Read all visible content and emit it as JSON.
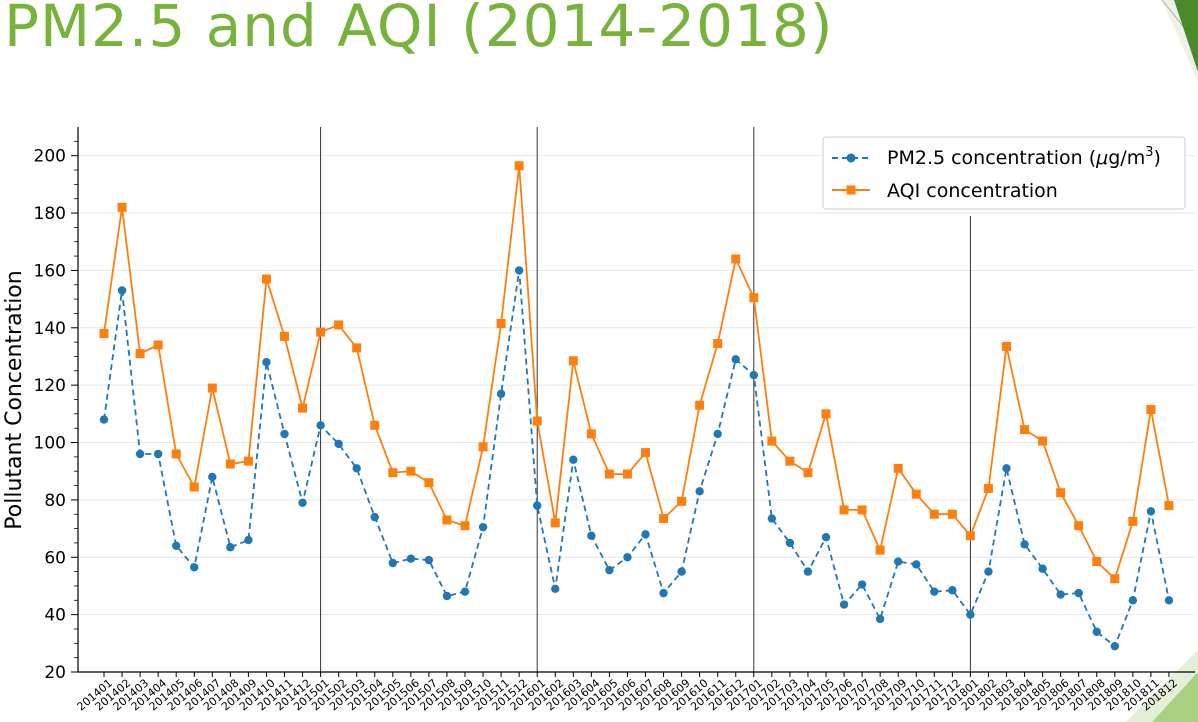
{
  "slide": {
    "title": "PM2.5 and AQI (2014-2018)",
    "title_color": "#77b33a"
  },
  "chart_data": {
    "type": "line",
    "title": "",
    "xlabel": "",
    "ylabel": "Pollutant Concentration",
    "ylim": [
      20,
      210
    ],
    "yticks": [
      20,
      40,
      60,
      80,
      100,
      120,
      140,
      160,
      180,
      200
    ],
    "grid": "horizontal",
    "legend_position": "top-right",
    "year_separators_after": [
      "201412",
      "201512",
      "201612",
      "201712"
    ],
    "x": [
      "201401",
      "201402",
      "201403",
      "201404",
      "201405",
      "201406",
      "201407",
      "201408",
      "201409",
      "201410",
      "201411",
      "201412",
      "201501",
      "201502",
      "201503",
      "201504",
      "201505",
      "201506",
      "201507",
      "201508",
      "201509",
      "201510",
      "201511",
      "201512",
      "201601",
      "201602",
      "201603",
      "201604",
      "201605",
      "201606",
      "201607",
      "201608",
      "201609",
      "201610",
      "201611",
      "201612",
      "201701",
      "201702",
      "201703",
      "201704",
      "201705",
      "201706",
      "201707",
      "201708",
      "201709",
      "201710",
      "201711",
      "201712",
      "201801",
      "201802",
      "201803",
      "201804",
      "201805",
      "201806",
      "201807",
      "201808",
      "201809",
      "201810",
      "201811",
      "201812"
    ],
    "series": [
      {
        "name_main": "PM2.5 concentration (",
        "name_mu": "μ",
        "name_unit": "g/m",
        "name_sup": "3",
        "name_end": ")",
        "color": "#1f77b4",
        "line_style": "dashed",
        "marker": "circle",
        "values": [
          108,
          153,
          96,
          96,
          64,
          56.5,
          88,
          63.5,
          66,
          128,
          103,
          79,
          106,
          99.5,
          91,
          74,
          58,
          59.5,
          59,
          46.5,
          48,
          70.5,
          117,
          160,
          78,
          49,
          94,
          67.5,
          55.5,
          60,
          68,
          47.5,
          55,
          83,
          103,
          129,
          123.5,
          73.5,
          65,
          55,
          67,
          43.5,
          50.5,
          38.5,
          58.5,
          57.5,
          48,
          48.5,
          40,
          55,
          91,
          64.5,
          56,
          47,
          47.5,
          34,
          29,
          45,
          76,
          45
        ]
      },
      {
        "name": "AQI concentration",
        "color": "#ff7f0e",
        "line_style": "solid",
        "marker": "square",
        "values": [
          138,
          182,
          131,
          134,
          96,
          84.5,
          119,
          92.5,
          93.5,
          157,
          137,
          112,
          138.5,
          141,
          133,
          106,
          89.5,
          90,
          86,
          73,
          71,
          98.5,
          141.5,
          196.5,
          107.5,
          72,
          128.5,
          103,
          89,
          89,
          96.5,
          73.5,
          79.5,
          113,
          134.5,
          164,
          150.5,
          100.5,
          93.5,
          89.5,
          110,
          76.5,
          76.5,
          62.5,
          91,
          82,
          75,
          75,
          67.5,
          84,
          133.5,
          104.5,
          100.5,
          82.5,
          71,
          58.5,
          52.5,
          72.5,
          111.5,
          78
        ]
      }
    ]
  }
}
